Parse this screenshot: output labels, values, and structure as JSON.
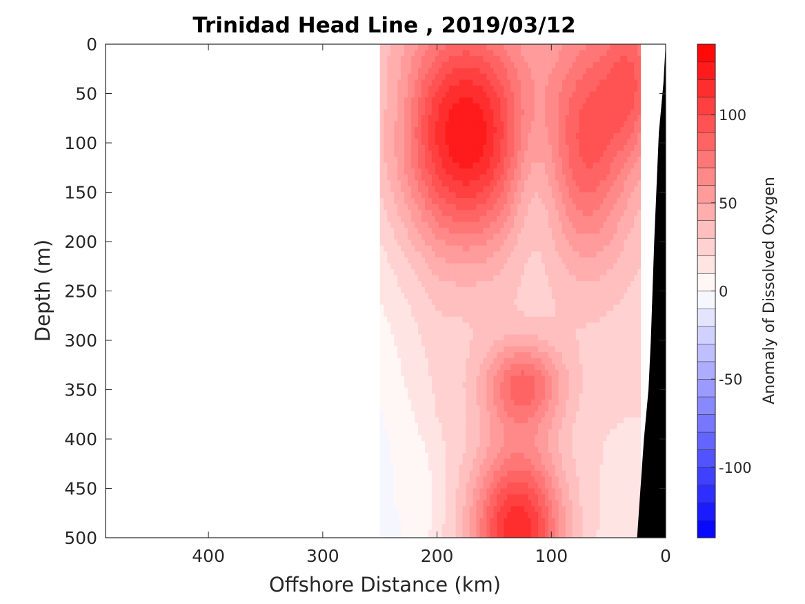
{
  "chart_data": {
    "type": "heatmap",
    "subtype": "filled-contour section",
    "title": "Trinidad Head Line , 2019/03/12",
    "xlabel": "Offshore Distance (km)",
    "ylabel": "Depth (m)",
    "x_reversed": true,
    "y_reversed": true,
    "xlim": [
      0,
      490
    ],
    "ylim": [
      0,
      500
    ],
    "x_ticks": [
      400,
      300,
      200,
      100,
      0
    ],
    "y_ticks": [
      0,
      50,
      100,
      150,
      200,
      250,
      300,
      350,
      400,
      450,
      500
    ],
    "colorbar": {
      "label": "Anomaly of Dissolved Oxygen",
      "range": [
        -140,
        140
      ],
      "level_step": 10,
      "ticks": [
        100,
        50,
        0,
        -50,
        -100
      ],
      "colormap": "blue-white-red",
      "low_color": "#0000ff",
      "high_color": "#ff0000",
      "mid_color": "#ffffff"
    },
    "data_extent_km": [
      22,
      250
    ],
    "bathymetry_color": "#000000",
    "bathymetry": {
      "distance_km": [
        0,
        2,
        6,
        10,
        13,
        15,
        19,
        22,
        25
      ],
      "depth_m": [
        0,
        40,
        90,
        200,
        300,
        350,
        400,
        450,
        500
      ]
    },
    "features": [
      {
        "name": "oxygen anomaly maximum",
        "distance_km": 175,
        "depth_m": 90,
        "value": 130
      },
      {
        "name": "secondary maximum near shelf",
        "distance_km": 68,
        "depth_m": 95,
        "value": 90
      },
      {
        "name": "shelf maximum",
        "distance_km": 30,
        "depth_m": 35,
        "value": 80
      },
      {
        "name": "low anomaly tongue",
        "distance_km": 115,
        "depth_m": 150,
        "value": 10
      },
      {
        "name": "offshore weak core",
        "distance_km": 240,
        "depth_m": 80,
        "value": 20
      },
      {
        "name": "mid-depth maximum",
        "distance_km": 125,
        "depth_m": 345,
        "value": 80
      },
      {
        "name": "deep maximum",
        "distance_km": 130,
        "depth_m": 495,
        "value": 120
      },
      {
        "name": "zero contour region",
        "distance_km": 230,
        "depth_m": 460,
        "value": 0
      }
    ]
  }
}
